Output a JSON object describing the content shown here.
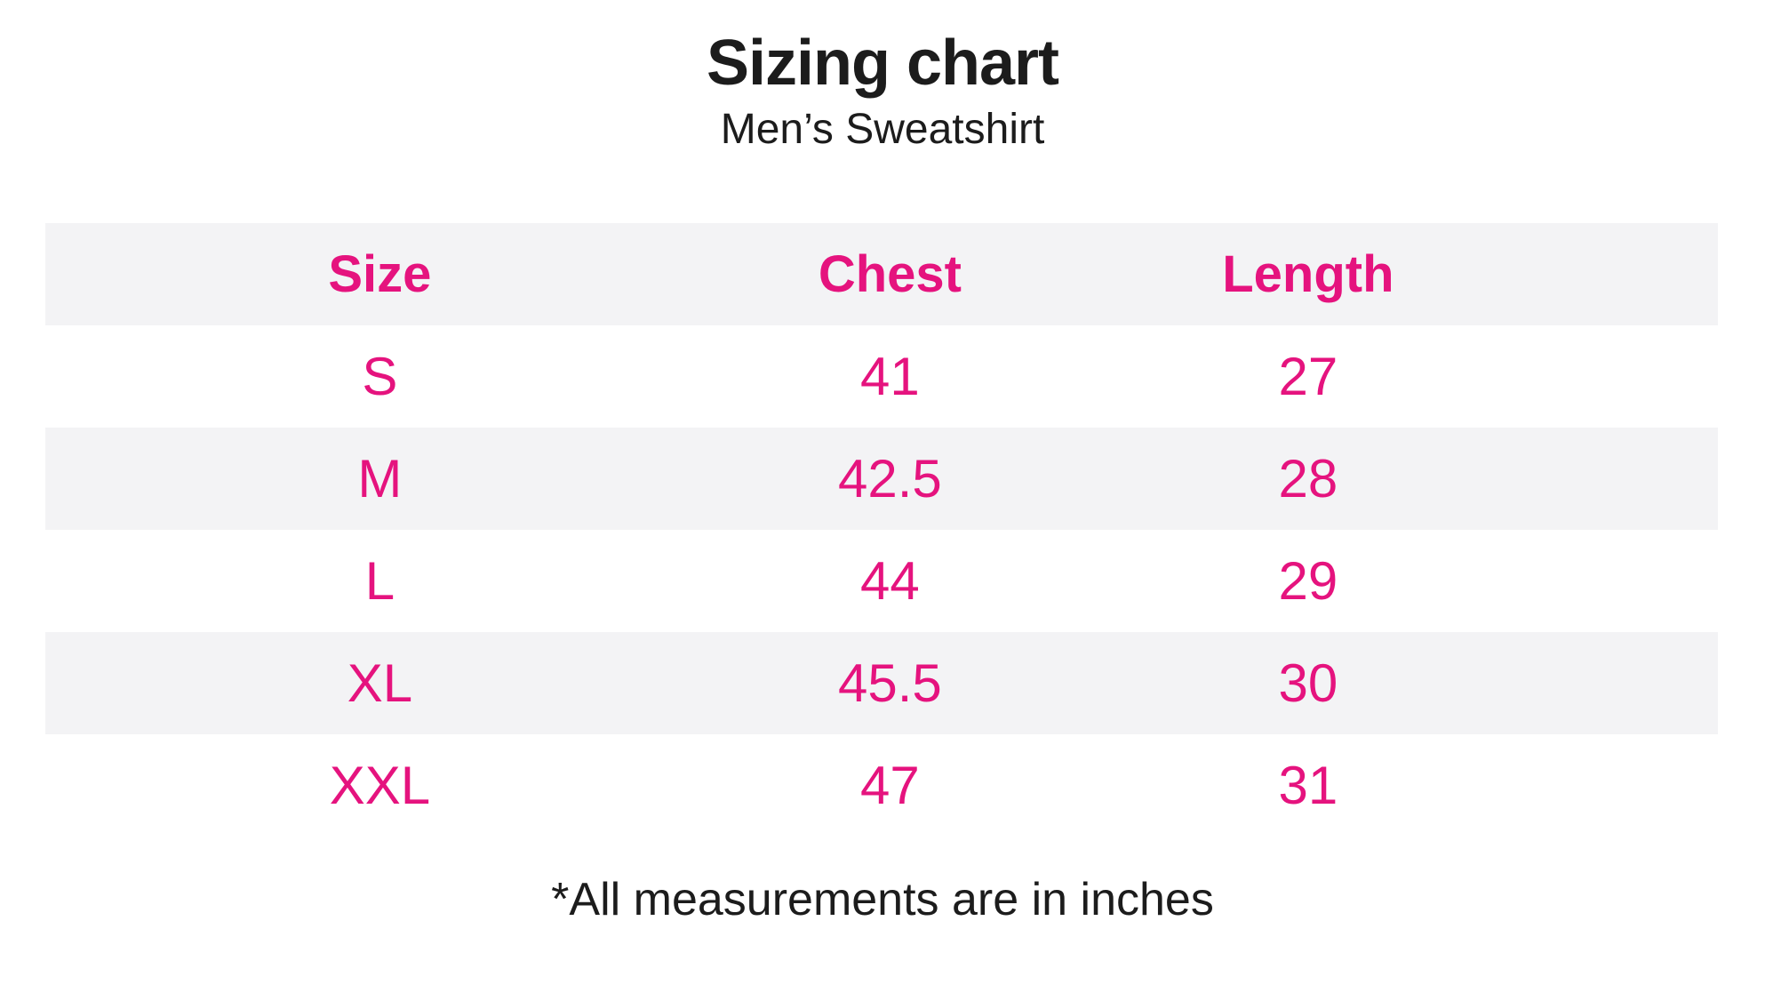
{
  "page": {
    "title": "Sizing chart",
    "subtitle": "Men’s Sweatshirt",
    "footnote": "*All measurements are in inches"
  },
  "colors": {
    "accent_pink": "#e5137e",
    "row_stripe_gray": "#f3f3f5",
    "text_black": "#1c1c1c"
  },
  "table": {
    "headers": [
      "Size",
      "Chest",
      "Length"
    ],
    "rows": [
      {
        "size": "S",
        "chest": "41",
        "length": "27"
      },
      {
        "size": "M",
        "chest": "42.5",
        "length": "28"
      },
      {
        "size": "L",
        "chest": "44",
        "length": "29"
      },
      {
        "size": "XL",
        "chest": "45.5",
        "length": "30"
      },
      {
        "size": "XXL",
        "chest": "47",
        "length": "31"
      }
    ]
  },
  "chart_data": {
    "type": "table",
    "title": "Sizing chart",
    "subtitle": "Men’s Sweatshirt",
    "columns": [
      "Size",
      "Chest",
      "Length"
    ],
    "rows": [
      [
        "S",
        41,
        27
      ],
      [
        "M",
        42.5,
        28
      ],
      [
        "L",
        44,
        29
      ],
      [
        "XL",
        45.5,
        30
      ],
      [
        "XXL",
        47,
        31
      ]
    ],
    "units": "inches",
    "note": "*All measurements are in inches",
    "layout": {
      "header_color": "#e5137e",
      "stripe_color": "#f3f3f5",
      "striped": true
    }
  }
}
